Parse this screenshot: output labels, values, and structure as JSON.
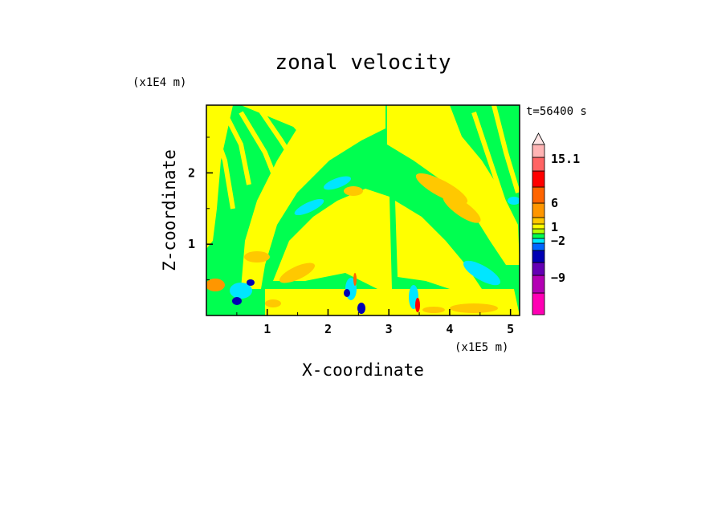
{
  "chart_data": {
    "type": "heatmap",
    "title": "zonal velocity",
    "xlabel": "X-coordinate",
    "ylabel": "Z-coordinate",
    "x_unit": "(x1E5 m)",
    "y_unit": "(x1E4 m)",
    "time_label": "t=56400 s",
    "xlim": [
      0,
      5.15
    ],
    "ylim": [
      0,
      2.95
    ],
    "x_ticks": [
      "1",
      "2",
      "3",
      "4",
      "5"
    ],
    "y_ticks": [
      "1",
      "2"
    ],
    "colorbar": {
      "colors": [
        "#ff00b4",
        "#b400b4",
        "#6400b4",
        "#0000b4",
        "#0066ff",
        "#00e6ff",
        "#00ff50",
        "#b4ff00",
        "#ffff00",
        "#ffc800",
        "#ff9600",
        "#ff6400",
        "#ff0000",
        "#ff6464",
        "#ffb4b4"
      ],
      "overflow_color": "#ffe6e6",
      "labels": [
        "15.1",
        "6",
        "1",
        "-2",
        "-9"
      ]
    }
  }
}
